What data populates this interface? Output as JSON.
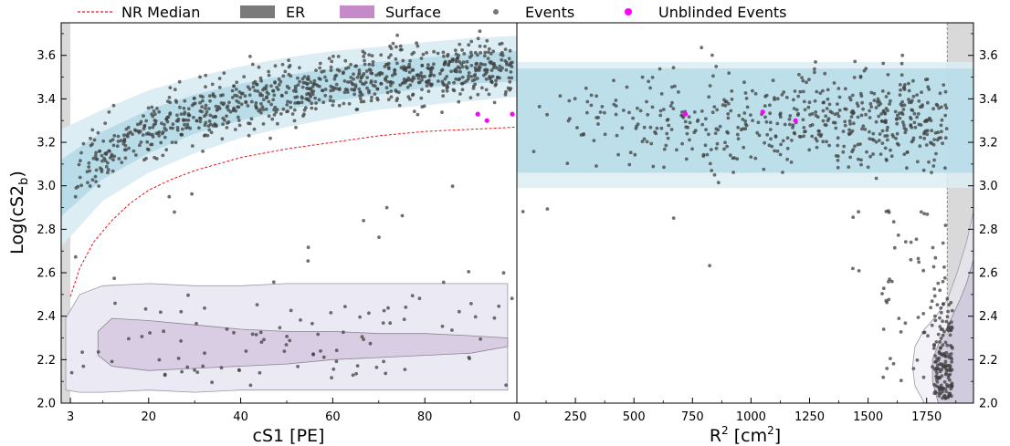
{
  "chart_data": {
    "type": "scatter",
    "legend": {
      "position": "top",
      "entries": [
        {
          "label": "NR Median",
          "kind": "dashed-line",
          "color": "#e8141a"
        },
        {
          "label": "ER",
          "kind": "patch",
          "color": "#7a7a7a"
        },
        {
          "label": "Surface",
          "kind": "patch",
          "color": "#c58ac8"
        },
        {
          "label": "Events",
          "kind": "marker",
          "color": "#777777"
        },
        {
          "label": "Unblinded Events",
          "kind": "marker",
          "color": "#ff00ff"
        }
      ]
    },
    "ylabel_main": "Log(cS2",
    "ylabel_sub": "b",
    "ylabel_close": ")",
    "ylim": [
      2.0,
      3.75
    ],
    "yticks": [
      2.0,
      2.2,
      2.4,
      2.6,
      2.8,
      3.0,
      3.2,
      3.4,
      3.6
    ],
    "left_panel": {
      "xlabel": "cS1 [PE]",
      "xlim": [
        1,
        100
      ],
      "xticks": [
        3,
        20,
        40,
        60,
        80
      ],
      "xtick_labels": [
        "3",
        "20",
        "40",
        "60",
        "80"
      ],
      "shaded_below_x": 3,
      "nr_median": [
        [
          3,
          2.49
        ],
        [
          5,
          2.62
        ],
        [
          8,
          2.74
        ],
        [
          12,
          2.84
        ],
        [
          16,
          2.92
        ],
        [
          20,
          2.98
        ],
        [
          25,
          3.03
        ],
        [
          30,
          3.07
        ],
        [
          40,
          3.13
        ],
        [
          50,
          3.17
        ],
        [
          60,
          3.2
        ],
        [
          70,
          3.23
        ],
        [
          80,
          3.25
        ],
        [
          90,
          3.26
        ],
        [
          100,
          3.27
        ]
      ],
      "er_band_inner": {
        "x": [
          1,
          10,
          20,
          30,
          40,
          50,
          60,
          70,
          80,
          90,
          100
        ],
        "lower": [
          2.86,
          3.03,
          3.15,
          3.24,
          3.3,
          3.35,
          3.39,
          3.42,
          3.45,
          3.47,
          3.48
        ],
        "upper": [
          3.12,
          3.25,
          3.35,
          3.42,
          3.47,
          3.51,
          3.54,
          3.57,
          3.59,
          3.61,
          3.62
        ]
      },
      "er_band_outer": {
        "x": [
          1,
          10,
          20,
          30,
          40,
          50,
          60,
          70,
          80,
          90,
          100
        ],
        "lower": [
          2.72,
          2.93,
          3.06,
          3.15,
          3.22,
          3.27,
          3.31,
          3.35,
          3.37,
          3.39,
          3.41
        ],
        "upper": [
          3.26,
          3.35,
          3.44,
          3.5,
          3.55,
          3.59,
          3.62,
          3.64,
          3.66,
          3.68,
          3.69
        ]
      },
      "surface_outer": {
        "x": [
          2,
          5,
          10,
          20,
          30,
          40,
          50,
          60,
          70,
          80,
          90,
          98
        ],
        "lower": [
          2.06,
          2.05,
          2.05,
          2.06,
          2.05,
          2.06,
          2.06,
          2.06,
          2.06,
          2.06,
          2.06,
          2.06
        ],
        "upper": [
          2.39,
          2.5,
          2.54,
          2.55,
          2.54,
          2.54,
          2.55,
          2.55,
          2.55,
          2.55,
          2.55,
          2.55
        ]
      },
      "surface_inner": {
        "x": [
          9,
          12,
          20,
          30,
          40,
          50,
          60,
          70,
          80,
          90,
          98
        ],
        "lower": [
          2.22,
          2.17,
          2.15,
          2.16,
          2.17,
          2.18,
          2.2,
          2.21,
          2.22,
          2.23,
          2.26
        ],
        "upper": [
          2.33,
          2.39,
          2.38,
          2.36,
          2.34,
          2.33,
          2.33,
          2.32,
          2.32,
          2.31,
          2.3
        ]
      },
      "unblinded_events": [
        [
          91.5,
          3.33
        ],
        [
          93.5,
          3.3
        ],
        [
          99,
          3.33
        ]
      ]
    },
    "right_panel": {
      "xlabel_main": "R",
      "xlabel_sup": "2",
      "xlabel_units": " [cm",
      "xlabel_sup2": "2",
      "xlabel_close": "]",
      "xlim": [
        0,
        1950
      ],
      "xticks": [
        0,
        250,
        500,
        750,
        1000,
        1250,
        1500,
        1750
      ],
      "xtick_labels": [
        "0",
        "250",
        "500",
        "750",
        "1000",
        "1250",
        "1500",
        "1750"
      ],
      "shaded_above_x": 1838,
      "er_band_inner": {
        "lower": 3.06,
        "upper": 3.54
      },
      "er_band_outer": {
        "lower": 2.99,
        "upper": 3.57
      },
      "surface_outer": [
        [
          1950,
          2.88
        ],
        [
          1920,
          2.74
        ],
        [
          1880,
          2.6
        ],
        [
          1840,
          2.48
        ],
        [
          1790,
          2.4
        ],
        [
          1740,
          2.34
        ],
        [
          1700,
          2.26
        ],
        [
          1690,
          2.17
        ],
        [
          1700,
          2.08
        ],
        [
          1740,
          2.0
        ],
        [
          1950,
          2.0
        ]
      ],
      "surface_inner": [
        [
          1950,
          2.66
        ],
        [
          1920,
          2.55
        ],
        [
          1890,
          2.47
        ],
        [
          1860,
          2.4
        ],
        [
          1830,
          2.33
        ],
        [
          1800,
          2.27
        ],
        [
          1775,
          2.2
        ],
        [
          1775,
          2.1
        ],
        [
          1800,
          2.0
        ],
        [
          1950,
          2.0
        ]
      ],
      "unblinded_events": [
        [
          720,
          3.33
        ],
        [
          1050,
          3.34
        ],
        [
          1190,
          3.3
        ]
      ]
    }
  }
}
